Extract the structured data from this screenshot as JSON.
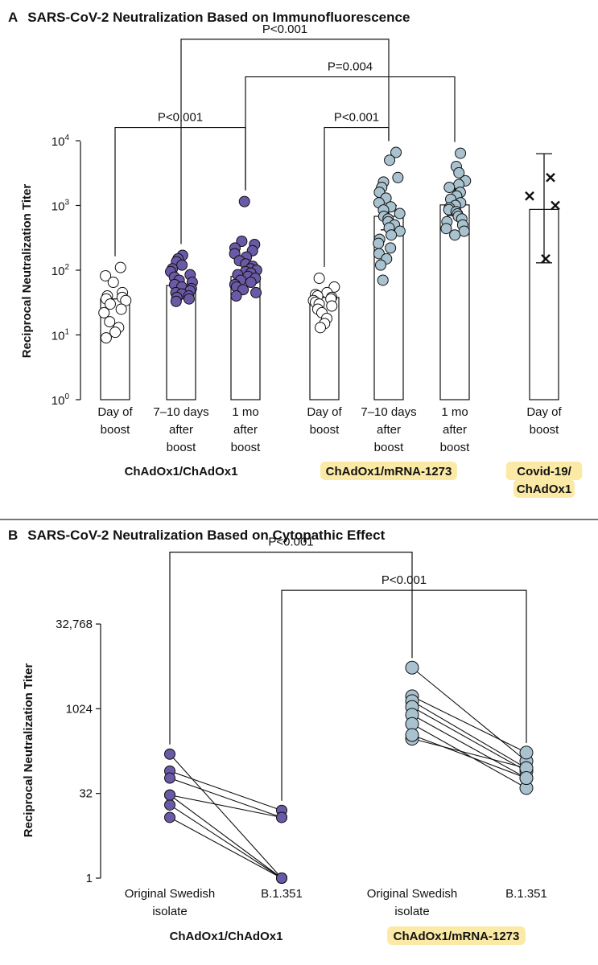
{
  "panel_a": {
    "letter": "A",
    "title": "SARS-CoV-2 Neutralization Based on Immunofluorescence"
  },
  "panel_b": {
    "letter": "B",
    "title": "SARS-CoV-2 Neutralization Based on Cytopathic Effect"
  },
  "colors": {
    "chadox1_chadox1": "#6a59a6",
    "mrna_1273": "#a8c2cf",
    "day_of_boost": "#ffffff",
    "highlight": "#fbe9a6"
  },
  "chart_data": [
    {
      "type": "bar",
      "panel": "A",
      "ylabel": "Reciprocal Neutralization Titer",
      "y_scale": "log10",
      "ylim": [
        1,
        10000
      ],
      "yticks": [
        {
          "base": "10",
          "exp": "0"
        },
        {
          "base": "10",
          "exp": "1"
        },
        {
          "base": "10",
          "exp": "2"
        },
        {
          "base": "10",
          "exp": "3"
        },
        {
          "base": "10",
          "exp": "4"
        }
      ],
      "categories": [
        {
          "lines": [
            "Day of",
            "boost"
          ],
          "group": "ChAdOx1/ChAdOx1"
        },
        {
          "lines": [
            "7–10 days",
            "after",
            "boost"
          ],
          "group": "ChAdOx1/ChAdOx1"
        },
        {
          "lines": [
            "1 mo",
            "after",
            "boost"
          ],
          "group": "ChAdOx1/ChAdOx1"
        },
        {
          "lines": [
            "Day of",
            "boost"
          ],
          "group": "ChAdOx1/mRNA-1273"
        },
        {
          "lines": [
            "7–10 days",
            "after",
            "boost"
          ],
          "group": "ChAdOx1/mRNA-1273"
        },
        {
          "lines": [
            "1 mo",
            "after",
            "boost"
          ],
          "group": "ChAdOx1/mRNA-1273"
        },
        {
          "lines": [
            "Day of",
            "boost"
          ],
          "group": "Covid-19/ChAdOx1"
        }
      ],
      "groups": [
        {
          "label": "ChAdOx1/ChAdOx1",
          "highlight": false,
          "lines": [
            "ChAdOx1/ChAdOx1"
          ]
        },
        {
          "label": "ChAdOx1/mRNA-1273",
          "highlight": true,
          "lines": [
            "ChAdOx1/mRNA-1273"
          ]
        },
        {
          "label": "Covid-19/ChAdOx1",
          "highlight": true,
          "lines": [
            "Covid-19/",
            "ChAdOx1"
          ]
        }
      ],
      "bar_values": [
        36,
        58,
        80,
        38,
        680,
        1020,
        870
      ],
      "error_bars": [
        null,
        null,
        null,
        null,
        [
          420,
          1000
        ],
        [
          700,
          1800
        ],
        [
          130,
          6300
        ]
      ],
      "points": [
        {
          "fill": "day",
          "values": [
            110,
            82,
            65,
            45,
            40,
            38,
            36,
            34,
            30,
            25,
            22,
            16,
            13,
            11,
            9
          ]
        },
        {
          "fill": "chadox1",
          "values": [
            170,
            150,
            135,
            120,
            105,
            95,
            85,
            78,
            70,
            65,
            60,
            55,
            52,
            48,
            45,
            43,
            40,
            38,
            36,
            33
          ]
        },
        {
          "fill": "chadox1",
          "values": [
            1150,
            280,
            250,
            220,
            200,
            180,
            160,
            140,
            125,
            115,
            105,
            100,
            95,
            90,
            85,
            80,
            75,
            70,
            65,
            60,
            55,
            50,
            45,
            40
          ]
        },
        {
          "fill": "day",
          "values": [
            75,
            55,
            45,
            42,
            40,
            38,
            36,
            34,
            32,
            30,
            28,
            25,
            22,
            18,
            15,
            13
          ]
        },
        {
          "fill": "mrna",
          "values": [
            6600,
            5000,
            2700,
            2300,
            1900,
            1600,
            1300,
            1100,
            950,
            850,
            750,
            680,
            620,
            560,
            500,
            450,
            400,
            350,
            300,
            260,
            220,
            180,
            150,
            120,
            70
          ]
        },
        {
          "fill": "mrna",
          "values": [
            6400,
            4000,
            3200,
            2400,
            2100,
            1900,
            1600,
            1400,
            1250,
            1100,
            1000,
            920,
            860,
            800,
            740,
            680,
            620,
            560,
            500,
            440,
            400,
            350
          ]
        },
        {
          "fill": "cross",
          "values": [
            2700,
            1400,
            1000,
            150
          ]
        }
      ],
      "comparisons": [
        {
          "text": "P<0.001",
          "from": 0,
          "to": 2,
          "y": 16000
        },
        {
          "text": "P<0.001",
          "from": 1,
          "to": 4,
          "y": 370000
        },
        {
          "text": "P=0.004",
          "from": 2,
          "to": 5,
          "y": 97000
        },
        {
          "text": "P<0.001",
          "from": 3,
          "to": 4,
          "y": 16000
        }
      ]
    },
    {
      "type": "line",
      "panel": "B",
      "ylabel": "Reciprocal Neutralization Titer",
      "y_scale": "log2",
      "ylim": [
        1,
        32768
      ],
      "yticks": [
        "1",
        "32",
        "1024",
        "32,768"
      ],
      "x": [
        "Original Swedish isolate",
        "B.1.351",
        "Original Swedish isolate",
        "B.1.351"
      ],
      "x_lines": [
        [
          "Original Swedish",
          "isolate"
        ],
        [
          "B.1.351"
        ],
        [
          "Original Swedish",
          "isolate"
        ],
        [
          "B.1.351"
        ]
      ],
      "groups": [
        {
          "label": "ChAdOx1/ChAdOx1",
          "highlight": false
        },
        {
          "label": "ChAdOx1/mRNA-1273",
          "highlight": true
        }
      ],
      "series": [
        {
          "group": 0,
          "fill": "chadox1",
          "pairs": [
            [
              160,
              1
            ],
            [
              80,
              16
            ],
            [
              60,
              12
            ],
            [
              30,
              12
            ],
            [
              20,
              1
            ],
            [
              30,
              1
            ],
            [
              12,
              1
            ]
          ]
        },
        {
          "group": 1,
          "fill": "mrna",
          "pairs": [
            [
              5500,
              120
            ],
            [
              1700,
              170
            ],
            [
              1400,
              90
            ],
            [
              1100,
              80
            ],
            [
              800,
              60
            ],
            [
              550,
              40
            ],
            [
              300,
              90
            ],
            [
              350,
              60
            ]
          ]
        }
      ],
      "comparisons": [
        {
          "text": "P<0.001",
          "from": 0,
          "to": 2,
          "y": 620000
        },
        {
          "text": "P<0.001",
          "from": 1,
          "to": 3,
          "y": 130000
        }
      ]
    }
  ]
}
